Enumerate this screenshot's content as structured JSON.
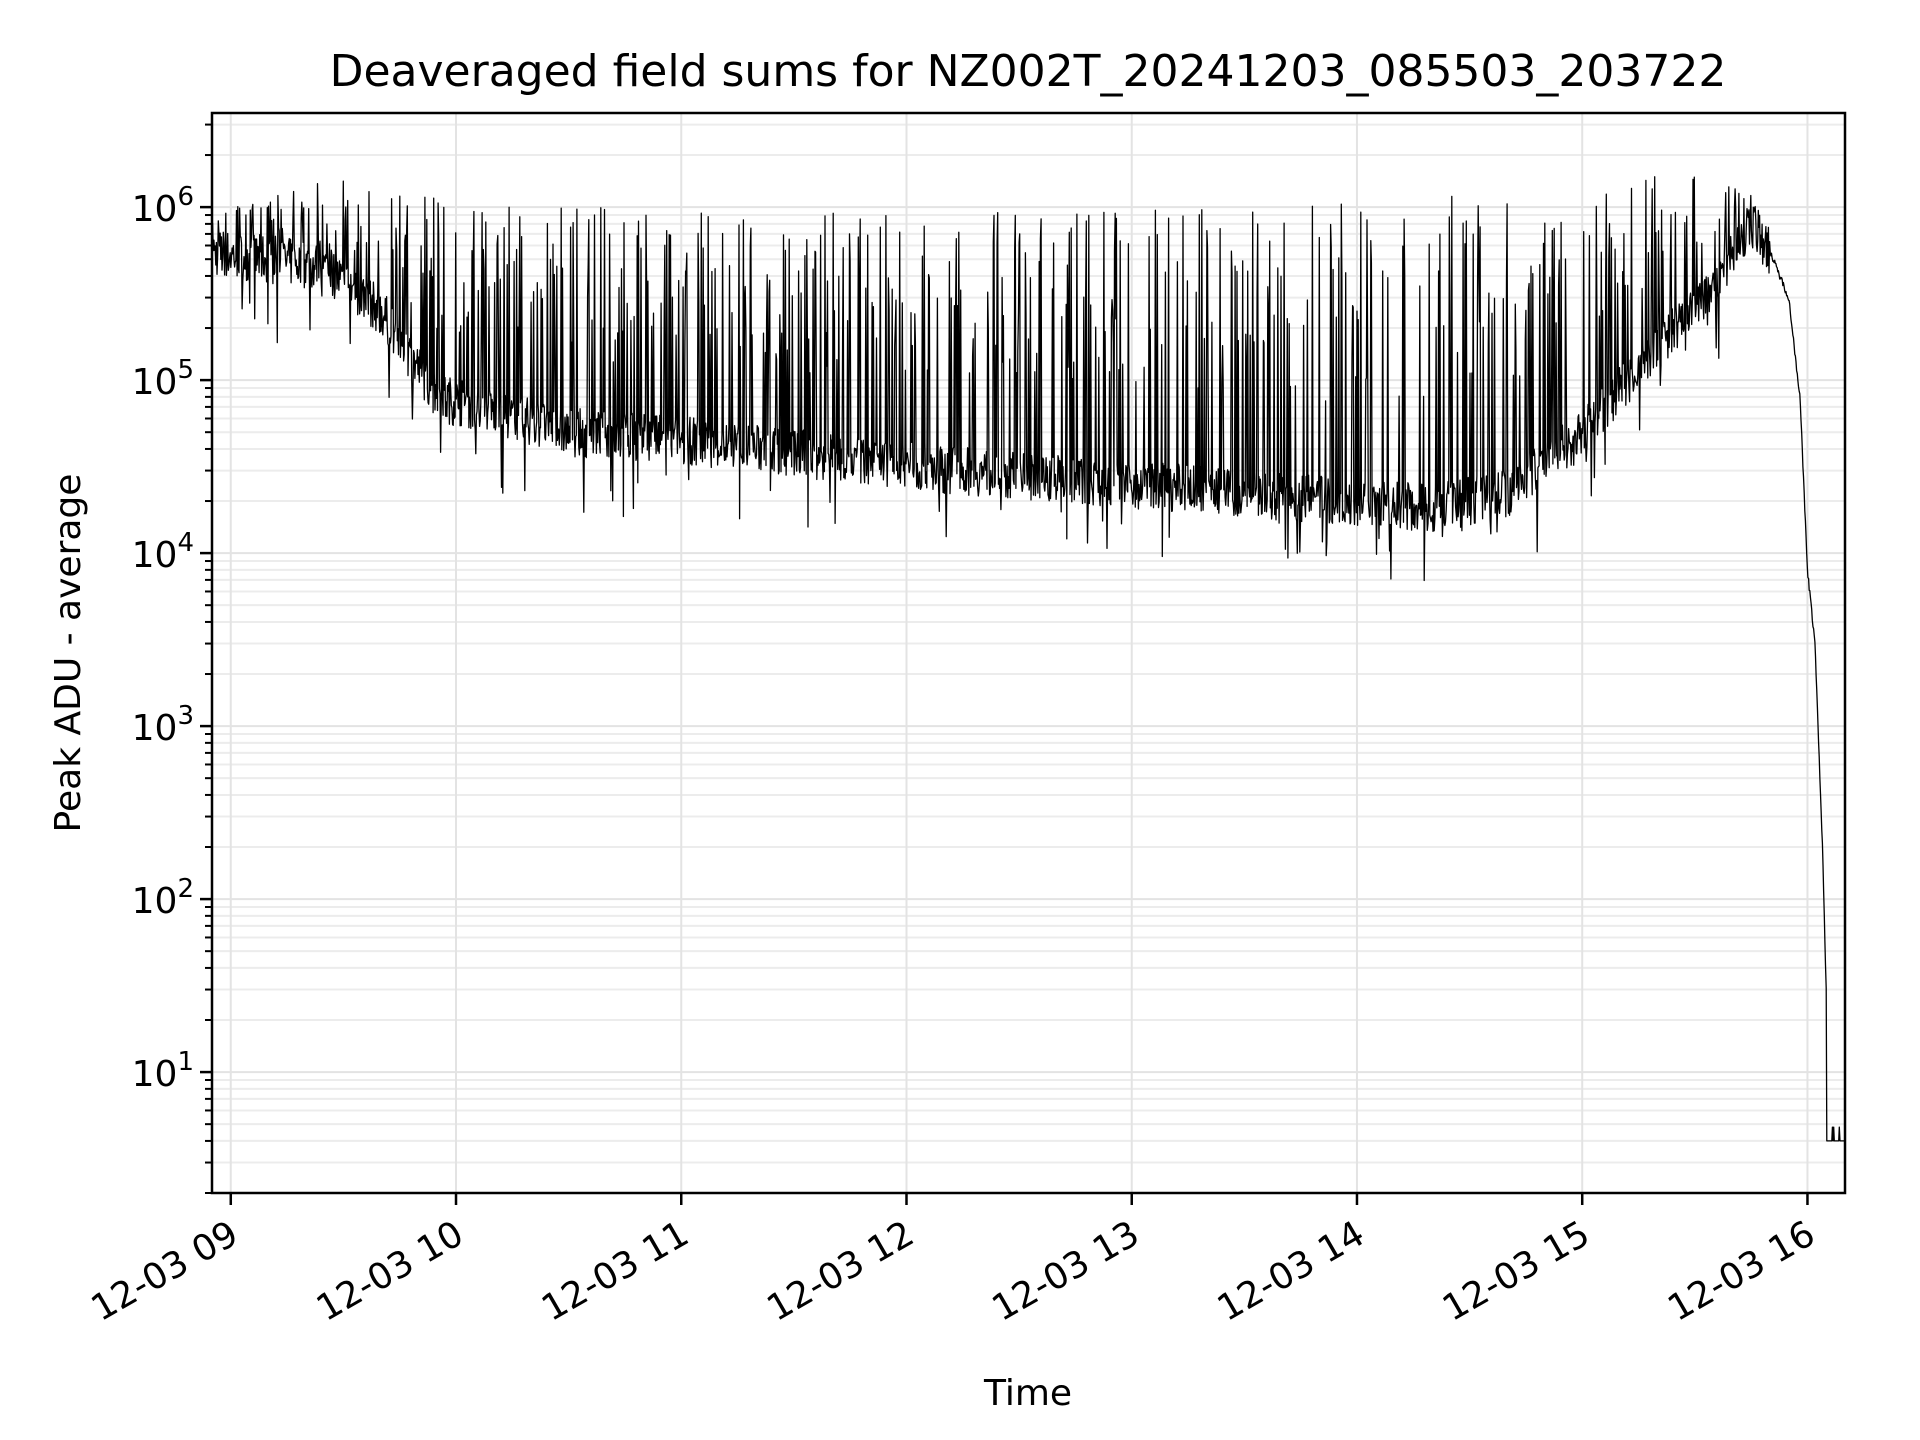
{
  "chart_data": {
    "type": "line",
    "title": "Deaveraged field sums for NZ002T_20241203_085503_203722",
    "xlabel": "Time",
    "ylabel": "Peak ADU - average",
    "y_scale": "log",
    "ylim": [
      2,
      3500000
    ],
    "xlim": [
      "12-03 08:55",
      "12-03 16:10"
    ],
    "grid": true,
    "x_tick_labels": [
      "12-03 09",
      "12-03 10",
      "12-03 11",
      "12-03 12",
      "12-03 13",
      "12-03 14",
      "12-03 15",
      "12-03 16"
    ],
    "x_ticks": [
      "12-03 09:00",
      "12-03 10:00",
      "12-03 11:00",
      "12-03 12:00",
      "12-03 13:00",
      "12-03 14:00",
      "12-03 15:00",
      "12-03 16:00"
    ],
    "y_ticks": [
      {
        "base": "10",
        "exp": "1",
        "value": 10
      },
      {
        "base": "10",
        "exp": "2",
        "value": 100
      },
      {
        "base": "10",
        "exp": "3",
        "value": 1000
      },
      {
        "base": "10",
        "exp": "4",
        "value": 10000
      },
      {
        "base": "10",
        "exp": "5",
        "value": 100000
      },
      {
        "base": "10",
        "exp": "6",
        "value": 1000000
      }
    ],
    "series": [
      {
        "color": "#000000",
        "baseline": [
          [
            "12-03 08:55",
            550000
          ],
          [
            "12-03 09:10",
            500000
          ],
          [
            "12-03 09:25",
            450000
          ],
          [
            "12-03 09:40",
            250000
          ],
          [
            "12-03 09:55",
            80000
          ],
          [
            "12-03 10:30",
            50000
          ],
          [
            "12-03 11:00",
            45000
          ],
          [
            "12-03 11:30",
            38000
          ],
          [
            "12-03 12:00",
            32000
          ],
          [
            "12-03 12:30",
            28000
          ],
          [
            "12-03 13:00",
            25000
          ],
          [
            "12-03 13:30",
            22000
          ],
          [
            "12-03 14:00",
            20000
          ],
          [
            "12-03 14:20",
            18000
          ],
          [
            "12-03 14:40",
            22000
          ],
          [
            "12-03 15:00",
            50000
          ],
          [
            "12-03 15:20",
            150000
          ],
          [
            "12-03 15:35",
            350000
          ],
          [
            "12-03 15:45",
            800000
          ],
          [
            "12-03 15:50",
            550000
          ],
          [
            "12-03 15:55",
            300000
          ],
          [
            "12-03 15:58",
            80000
          ],
          [
            "12-03 16:00",
            8000
          ],
          [
            "12-03 16:02",
            3000
          ],
          [
            "12-03 16:04",
            200
          ],
          [
            "12-03 16:05",
            30
          ],
          [
            "12-03 16:05",
            4
          ],
          [
            "12-03 16:10",
            4
          ]
        ],
        "spike_envelope": [
          [
            "12-03 08:55",
            900000
          ],
          [
            "12-03 09:30",
            1600000
          ],
          [
            "12-03 10:00",
            1100000
          ],
          [
            "12-03 11:00",
            1000000
          ],
          [
            "12-03 12:00",
            900000
          ],
          [
            "12-03 13:00",
            1000000
          ],
          [
            "12-03 14:00",
            1050000
          ],
          [
            "12-03 14:30",
            1200000
          ],
          [
            "12-03 15:00",
            1400000
          ],
          [
            "12-03 15:40",
            1700000
          ],
          [
            "12-03 15:50",
            800000
          ]
        ]
      }
    ]
  }
}
